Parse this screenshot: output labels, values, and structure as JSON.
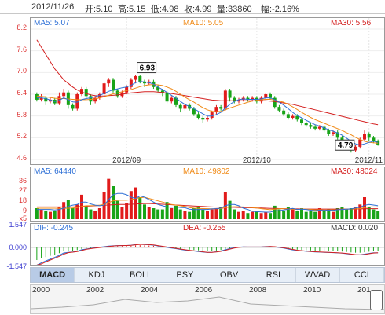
{
  "header": {
    "date": "2012/11/26",
    "open": "开:5.10",
    "high": "高:5.15",
    "low": "低:4.98",
    "close": "收:4.99",
    "volume": "量:33860",
    "change": "幅:-2.16%"
  },
  "price_panel": {
    "ma5": "MA5: 5.07",
    "ma10": "MA10: 5.05",
    "ma30": "MA30: 5.56",
    "y_labels": [
      "8.2",
      "7.6",
      "7.0",
      "6.4",
      "5.8",
      "5.2",
      "4.6"
    ],
    "x_labels": [
      "2012/09",
      "2012/10",
      "2012/11"
    ],
    "annot_high": "6.93",
    "annot_low": "4.79"
  },
  "volume_panel": {
    "ma5": "MA5: 64440",
    "ma10": "MA10: 49802",
    "ma30": "MA30: 48024",
    "y_labels": [
      "36",
      "27",
      "18",
      "9",
      "x5"
    ]
  },
  "macd_panel": {
    "dif": "DIF: -0.245",
    "dea": "DEA: -0.255",
    "macd": "MACD: 0.020",
    "y_labels": [
      "1.547",
      "0.000",
      "-1.547"
    ]
  },
  "tabs": [
    "MACD",
    "KDJ",
    "BOLL",
    "PSY",
    "OBV",
    "RSI",
    "WVAD",
    "CCI"
  ],
  "active_tab": "MACD",
  "timeline": {
    "years": [
      "2000",
      "2002",
      "2004",
      "2006",
      "2008",
      "2010",
      "201"
    ]
  },
  "colors": {
    "up": "#e11b1b",
    "down": "#18a418",
    "ma5": "#2d6fd6",
    "ma10": "#f08a16",
    "ma30": "#d42020"
  },
  "chart_data": {
    "type": "candlestick",
    "ylim": [
      4.6,
      8.2
    ],
    "x_ticks": [
      "2012/09",
      "2012/10",
      "2012/11"
    ],
    "candles": [
      [
        6.4,
        6.25,
        6.45,
        6.2
      ],
      [
        6.25,
        6.3,
        6.4,
        6.2
      ],
      [
        6.3,
        6.2,
        6.35,
        6.1
      ],
      [
        6.2,
        6.25,
        6.3,
        6.15
      ],
      [
        6.25,
        6.15,
        6.3,
        6.1
      ],
      [
        6.15,
        6.35,
        6.45,
        6.1
      ],
      [
        6.35,
        6.45,
        6.55,
        6.3
      ],
      [
        6.45,
        6.1,
        6.5,
        6.0
      ],
      [
        6.1,
        6.0,
        6.15,
        5.95
      ],
      [
        6.0,
        6.4,
        6.45,
        5.95
      ],
      [
        6.4,
        6.55,
        6.6,
        6.35
      ],
      [
        6.55,
        6.35,
        6.6,
        6.3
      ],
      [
        6.35,
        6.2,
        6.4,
        6.1
      ],
      [
        6.2,
        6.3,
        6.35,
        6.15
      ],
      [
        6.3,
        6.4,
        6.45,
        6.25
      ],
      [
        6.4,
        6.7,
        6.75,
        6.35
      ],
      [
        6.7,
        6.8,
        6.85,
        6.6
      ],
      [
        6.8,
        6.5,
        6.85,
        6.45
      ],
      [
        6.5,
        6.35,
        6.55,
        6.3
      ],
      [
        6.35,
        6.45,
        6.5,
        6.3
      ],
      [
        6.45,
        6.6,
        6.65,
        6.4
      ],
      [
        6.6,
        6.8,
        6.85,
        6.55
      ],
      [
        6.8,
        6.9,
        6.93,
        6.7
      ],
      [
        6.9,
        6.75,
        6.92,
        6.7
      ],
      [
        6.75,
        6.7,
        6.8,
        6.6
      ],
      [
        6.7,
        6.75,
        6.8,
        6.65
      ],
      [
        6.75,
        6.6,
        6.8,
        6.55
      ],
      [
        6.6,
        6.5,
        6.65,
        6.45
      ],
      [
        6.5,
        6.45,
        6.55,
        6.35
      ],
      [
        6.45,
        6.2,
        6.5,
        6.15
      ],
      [
        6.2,
        6.3,
        6.35,
        6.15
      ],
      [
        6.3,
        6.1,
        6.35,
        6.05
      ],
      [
        6.1,
        6.0,
        6.15,
        5.9
      ],
      [
        6.0,
        6.1,
        6.15,
        5.95
      ],
      [
        6.1,
        6.0,
        6.15,
        5.95
      ],
      [
        6.0,
        5.85,
        6.05,
        5.8
      ],
      [
        5.85,
        5.75,
        5.9,
        5.7
      ],
      [
        5.75,
        5.7,
        5.8,
        5.62
      ],
      [
        5.7,
        5.75,
        5.8,
        5.65
      ],
      [
        5.75,
        5.9,
        5.95,
        5.7
      ],
      [
        5.9,
        6.05,
        6.1,
        5.85
      ],
      [
        6.05,
        6.0,
        6.1,
        5.95
      ],
      [
        6.0,
        6.5,
        6.55,
        5.95
      ],
      [
        6.5,
        6.3,
        6.55,
        6.2
      ],
      [
        6.3,
        6.2,
        6.35,
        6.15
      ],
      [
        6.2,
        6.25,
        6.3,
        6.15
      ],
      [
        6.25,
        6.3,
        6.35,
        6.2
      ],
      [
        6.3,
        6.25,
        6.35,
        6.2
      ],
      [
        6.25,
        6.3,
        6.35,
        6.2
      ],
      [
        6.3,
        6.2,
        6.35,
        6.15
      ],
      [
        6.2,
        6.3,
        6.35,
        6.15
      ],
      [
        6.3,
        6.4,
        6.42,
        6.25
      ],
      [
        6.4,
        6.3,
        6.45,
        6.25
      ],
      [
        6.3,
        6.05,
        6.35,
        6.0
      ],
      [
        6.05,
        5.95,
        6.1,
        5.9
      ],
      [
        5.95,
        5.85,
        6.0,
        5.8
      ],
      [
        5.85,
        5.75,
        5.9,
        5.7
      ],
      [
        5.75,
        5.8,
        5.85,
        5.7
      ],
      [
        5.8,
        5.7,
        5.85,
        5.65
      ],
      [
        5.7,
        5.6,
        5.75,
        5.55
      ],
      [
        5.6,
        5.55,
        5.65,
        5.5
      ],
      [
        5.55,
        5.5,
        5.6,
        5.45
      ],
      [
        5.5,
        5.45,
        5.55,
        5.4
      ],
      [
        5.45,
        5.5,
        5.55,
        5.4
      ],
      [
        5.5,
        5.4,
        5.55,
        5.35
      ],
      [
        5.4,
        5.3,
        5.45,
        5.25
      ],
      [
        5.3,
        5.35,
        5.4,
        5.25
      ],
      [
        5.35,
        5.2,
        5.4,
        5.15
      ],
      [
        5.2,
        5.1,
        5.25,
        5.05
      ],
      [
        5.1,
        5.0,
        5.15,
        4.95
      ],
      [
        5.0,
        4.85,
        5.05,
        4.79
      ],
      [
        4.85,
        4.95,
        5.0,
        4.8
      ],
      [
        4.95,
        5.15,
        5.2,
        4.9
      ],
      [
        5.15,
        5.3,
        5.4,
        5.1
      ],
      [
        5.3,
        5.2,
        5.35,
        5.1
      ],
      [
        5.2,
        5.1,
        5.25,
        5.05
      ],
      [
        5.1,
        4.99,
        5.15,
        4.98
      ]
    ],
    "ma5": [
      6.3,
      6.3,
      6.28,
      6.24,
      6.2,
      6.23,
      6.3,
      6.25,
      6.19,
      6.18,
      6.25,
      6.28,
      6.3,
      6.33,
      6.37,
      6.42,
      6.48,
      6.52,
      6.55,
      6.58,
      6.6,
      6.65,
      6.72,
      6.75,
      6.74,
      6.72,
      6.68,
      6.6,
      6.53,
      6.45,
      6.37,
      6.29,
      6.2,
      6.12,
      6.06,
      6.0,
      5.93,
      5.86,
      5.8,
      5.8,
      5.84,
      5.9,
      6.02,
      6.12,
      6.2,
      6.25,
      6.27,
      6.26,
      6.26,
      6.26,
      6.27,
      6.3,
      6.3,
      6.25,
      6.18,
      6.1,
      6.0,
      5.9,
      5.81,
      5.75,
      5.68,
      5.62,
      5.56,
      5.52,
      5.47,
      5.42,
      5.38,
      5.33,
      5.27,
      5.19,
      5.1,
      5.03,
      5.0,
      5.03,
      5.07,
      5.1,
      5.07
    ],
    "ma10": [
      6.35,
      6.34,
      6.33,
      6.31,
      6.29,
      6.28,
      6.28,
      6.27,
      6.26,
      6.25,
      6.25,
      6.25,
      6.26,
      6.27,
      6.3,
      6.33,
      6.37,
      6.41,
      6.44,
      6.47,
      6.5,
      6.53,
      6.57,
      6.61,
      6.64,
      6.66,
      6.67,
      6.66,
      6.64,
      6.6,
      6.55,
      6.48,
      6.4,
      6.32,
      6.25,
      6.18,
      6.1,
      6.03,
      5.97,
      5.93,
      5.92,
      5.93,
      5.97,
      6.02,
      6.06,
      6.1,
      6.14,
      6.18,
      6.21,
      6.23,
      6.25,
      6.26,
      6.26,
      6.24,
      6.21,
      6.18,
      6.12,
      6.05,
      5.98,
      5.9,
      5.83,
      5.76,
      5.7,
      5.65,
      5.6,
      5.55,
      5.5,
      5.45,
      5.4,
      5.34,
      5.28,
      5.21,
      5.15,
      5.1,
      5.07,
      5.06,
      5.05
    ],
    "ma30": [
      7.9,
      7.7,
      7.5,
      7.3,
      7.1,
      6.95,
      6.8,
      6.7,
      6.6,
      6.52,
      6.46,
      6.42,
      6.38,
      6.36,
      6.35,
      6.35,
      6.36,
      6.37,
      6.38,
      6.4,
      6.42,
      6.44,
      6.45,
      6.46,
      6.47,
      6.47,
      6.47,
      6.46,
      6.45,
      6.44,
      6.42,
      6.4,
      6.38,
      6.36,
      6.34,
      6.32,
      6.3,
      6.28,
      6.26,
      6.24,
      6.23,
      6.22,
      6.22,
      6.22,
      6.22,
      6.22,
      6.22,
      6.22,
      6.22,
      6.22,
      6.22,
      6.22,
      6.21,
      6.2,
      6.18,
      6.16,
      6.14,
      6.12,
      6.09,
      6.06,
      6.03,
      6.0,
      5.97,
      5.94,
      5.91,
      5.88,
      5.85,
      5.82,
      5.79,
      5.76,
      5.73,
      5.7,
      5.67,
      5.64,
      5.61,
      5.58,
      5.56
    ],
    "volume": [
      9,
      8,
      7,
      6,
      7,
      10,
      14,
      16,
      9,
      12,
      20,
      11,
      8,
      7,
      9,
      22,
      33,
      27,
      15,
      10,
      13,
      23,
      26,
      18,
      12,
      10,
      9,
      8,
      8,
      14,
      9,
      11,
      8,
      7,
      6,
      9,
      10,
      8,
      7,
      8,
      9,
      10,
      22,
      15,
      8,
      6,
      7,
      5,
      6,
      7,
      5,
      6,
      5,
      11,
      8,
      7,
      10,
      8,
      7,
      9,
      6,
      7,
      6,
      9,
      7,
      8,
      6,
      9,
      10,
      8,
      9,
      10,
      12,
      18,
      10,
      8,
      7
    ],
    "vol_ma5": [
      8,
      8,
      8,
      8,
      7.5,
      8,
      9,
      10.5,
      11.5,
      12,
      14,
      14,
      12.5,
      11.5,
      11,
      11.5,
      16,
      20,
      21,
      21,
      20,
      18,
      17,
      19,
      18,
      16,
      14,
      12,
      11,
      10,
      9.8,
      10,
      9.6,
      9.4,
      8.2,
      7.8,
      8,
      8,
      8,
      8.4,
      8.6,
      9,
      11,
      12,
      12,
      11,
      9,
      8,
      6.4,
      6.2,
      6,
      5.8,
      5.8,
      6.8,
      7,
      7.6,
      8.2,
      8.8,
      8,
      8.2,
      8,
      7.4,
      7,
      7.4,
      7.2,
      7.4,
      7.2,
      7.8,
      8,
      8.2,
      8.4,
      9.2,
      9.8,
      11.4,
      12,
      11.6,
      11
    ],
    "vol_ma10": [
      9,
      9,
      9,
      9,
      9,
      8.8,
      8.8,
      9,
      9.2,
      9.5,
      10.5,
      11,
      11,
      11.2,
      11.5,
      12,
      13.5,
      15,
      15.5,
      15.5,
      15.5,
      16,
      17,
      17.5,
      18,
      17,
      16,
      15,
      14,
      13,
      12,
      11.5,
      11,
      10.5,
      9.5,
      9,
      8.8,
      8.7,
      8.6,
      8.5,
      8.5,
      8.6,
      9.5,
      10,
      10.2,
      10.2,
      10,
      9.8,
      9.5,
      9.2,
      8.6,
      8.2,
      7.8,
      8.2,
      8.6,
      8.6,
      8.2,
      8.2,
      8,
      8.4,
      8.2,
      8,
      7.7,
      7.7,
      7.5,
      7.6,
      7.7,
      7.8,
      8.1,
      8.2,
      8.4,
      8.4,
      8.6,
      9.4,
      10,
      10,
      10
    ],
    "vol_ma30": [
      10,
      10,
      10,
      10,
      10,
      10,
      10,
      10,
      10,
      10.2,
      10.4,
      10.6,
      10.8,
      11,
      11.2,
      11.4,
      11.6,
      11.8,
      12,
      12,
      12,
      12.2,
      12.4,
      12.6,
      12.8,
      12.8,
      12.6,
      12.4,
      12.2,
      12,
      11.8,
      11.6,
      11.4,
      11.2,
      11,
      10.8,
      10.6,
      10.4,
      10.2,
      10,
      9.9,
      9.8,
      9.8,
      9.8,
      9.7,
      9.6,
      9.5,
      9.4,
      9.3,
      9.2,
      9.1,
      9,
      8.9,
      8.8,
      8.7,
      8.6,
      8.5,
      8.4,
      8.4,
      8.4,
      8.3,
      8.3,
      8.3,
      8.3,
      8.3,
      8.3,
      8.3,
      8.3,
      8.3,
      8.3,
      8.3,
      8.3,
      8.4,
      8.5,
      8.6,
      8.6,
      8.6
    ]
  }
}
